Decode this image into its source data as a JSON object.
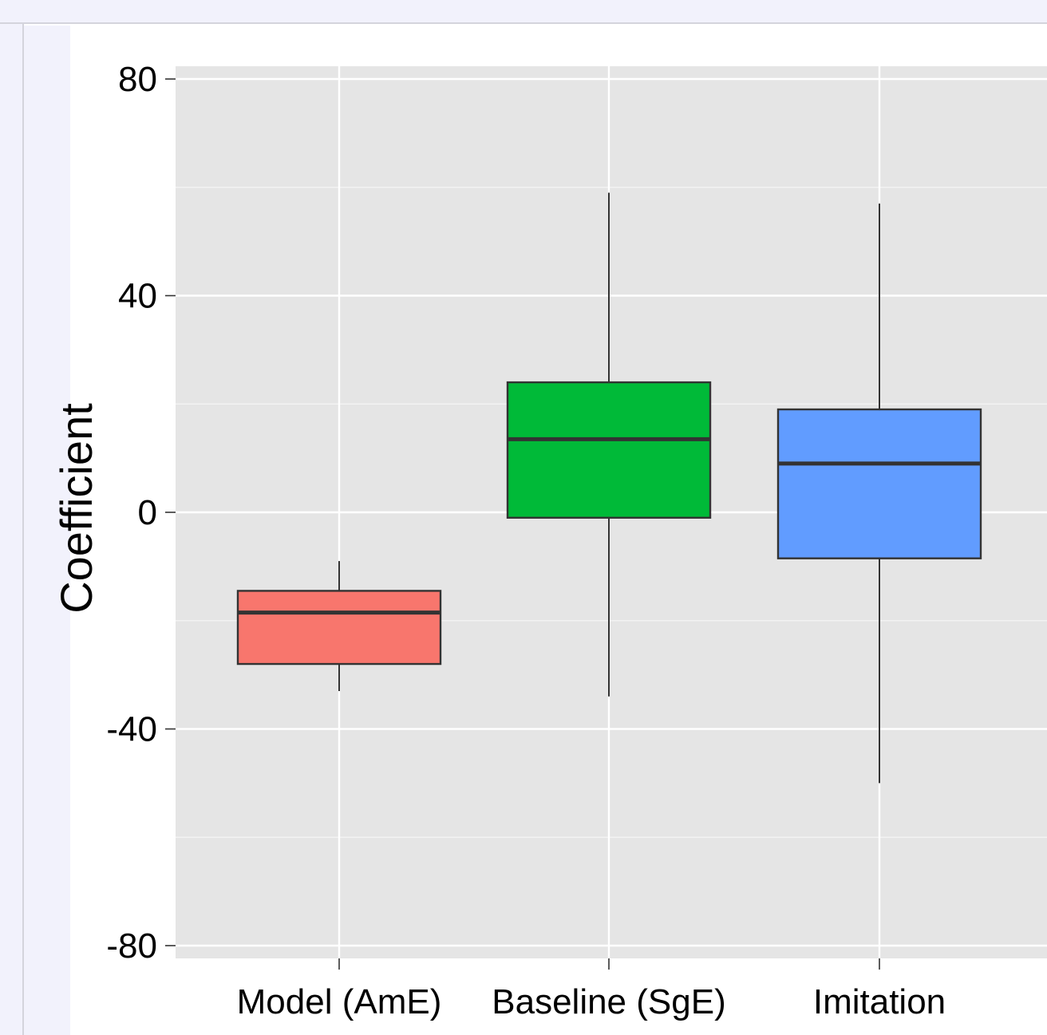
{
  "chart_data": {
    "type": "box",
    "ylabel": "Coefficient",
    "xlabel": "",
    "ylim": [
      -82,
      83
    ],
    "yticks": [
      80,
      40,
      0,
      -40,
      -80
    ],
    "ytick_labels": [
      "80",
      "40",
      "0",
      "-40",
      "-80"
    ],
    "grid": true,
    "legend": "none",
    "categories": [
      "Model (AmE)",
      "Baseline (SgE)",
      "Imitation"
    ],
    "boxes": [
      {
        "category": "Model (AmE)",
        "whisker_low": -33,
        "q1": -28,
        "median": -18.5,
        "q3": -14.5,
        "whisker_high": -9,
        "color": "#F8766D"
      },
      {
        "category": "Baseline (SgE)",
        "whisker_low": -34,
        "q1": -1,
        "median": 13.5,
        "q3": 24,
        "whisker_high": 59,
        "color": "#00BA38"
      },
      {
        "category": "Imitation",
        "whisker_low": -50,
        "q1": -8.5,
        "median": 9,
        "q3": 19,
        "whisker_high": 57,
        "color": "#619CFF"
      }
    ],
    "panel_background": "#E5E5E5",
    "grid_color": "#FFFFFF"
  }
}
